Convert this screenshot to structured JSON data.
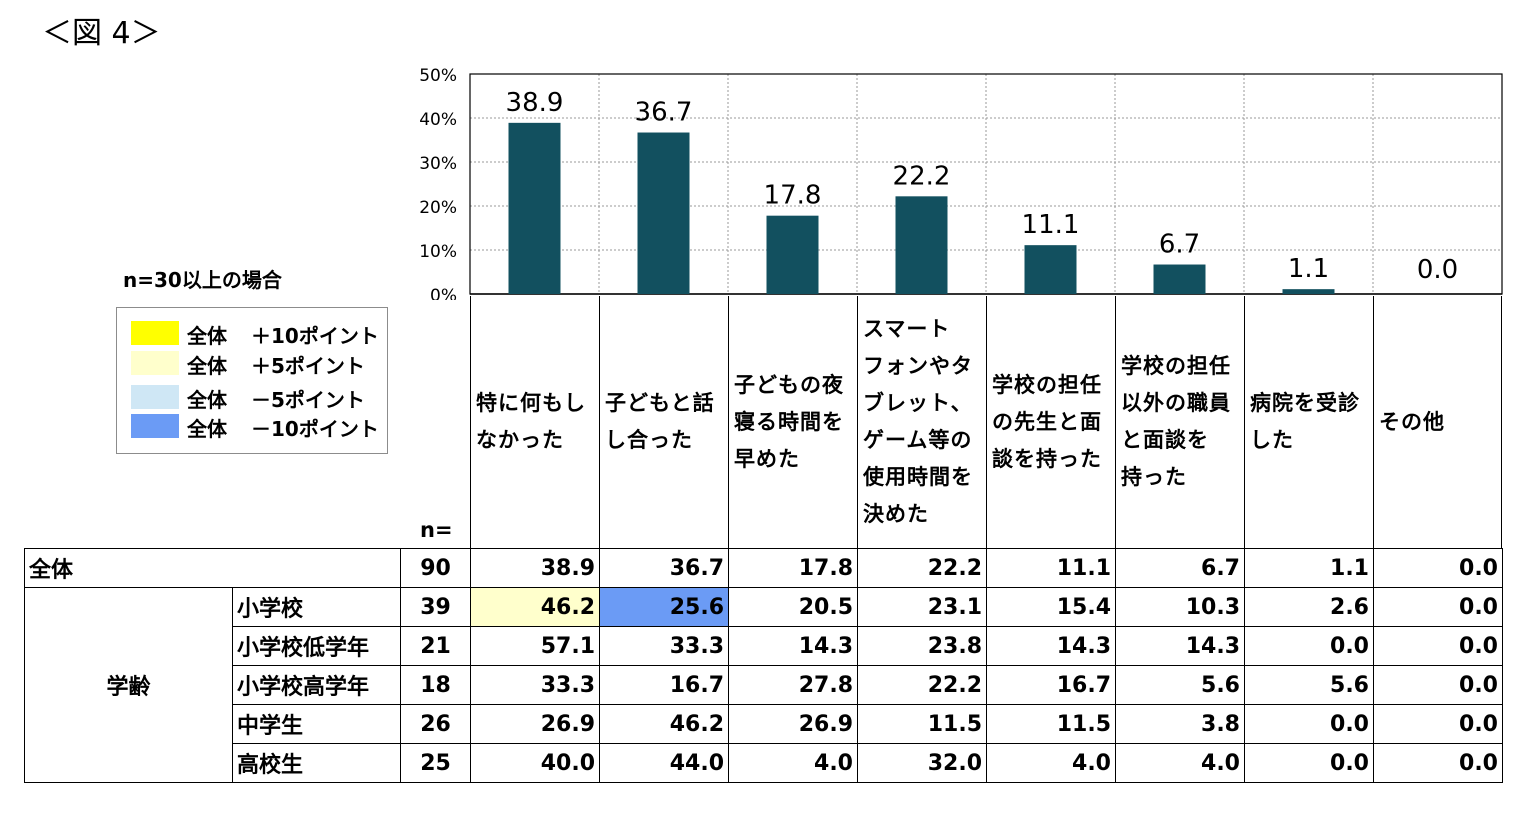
{
  "figure_title": "＜図 4＞",
  "n_note": "n=30以上の場合",
  "legend": [
    {
      "label": "全体",
      "diff": "＋10ポイント",
      "color": "#ffff00"
    },
    {
      "label": "全体",
      "diff": "＋5ポイント",
      "color": "#ffffcc"
    },
    {
      "label": "全体",
      "diff": "－5ポイント",
      "color": "#cfe7f5"
    },
    {
      "label": "全体",
      "diff": "－10ポイント",
      "color": "#6b9bf5"
    }
  ],
  "n_label": "n=",
  "bar_color": "#12505f",
  "chart_data": {
    "type": "bar",
    "categories": [
      "特に何もしなかった",
      "子どもと話し合った",
      "子どもの夜寝る時間を早めた",
      "スマートフォンやタブレット、ゲーム等の使用時間を決めた",
      "学校の担任の先生と面談を持った",
      "学校の担任以外の職員と面談を持った",
      "病院を受診した",
      "その他"
    ],
    "values": [
      38.9,
      36.7,
      17.8,
      22.2,
      11.1,
      6.7,
      1.1,
      0.0
    ],
    "value_labels": [
      "38.9",
      "36.7",
      "17.8",
      "22.2",
      "11.1",
      "6.7",
      "1.1",
      "0.0"
    ],
    "y_ticks": [
      "0%",
      "10%",
      "20%",
      "30%",
      "40%",
      "50%"
    ],
    "ylim": [
      0,
      50
    ],
    "grid": true,
    "title": "",
    "xlabel": "",
    "ylabel": ""
  },
  "headers": [
    "特に何もし\nなかった",
    "子どもと話\nし合った",
    "子どもの夜\n寝る時間を\n早めた",
    "スマート\nフォンやタ\nブレット、\nゲーム等の\n使用時間を\n決めた",
    "学校の担任\nの先生と面\n談を持った",
    "学校の担任\n以外の職員\nと面談を\n持った",
    "病院を受診\nした",
    "その他"
  ],
  "table": {
    "total": {
      "label": "全体",
      "n": "90",
      "values": [
        "38.9",
        "36.7",
        "17.8",
        "22.2",
        "11.1",
        "6.7",
        "1.1",
        "0.0"
      ]
    },
    "group_label": "学齢",
    "rows": [
      {
        "label": "小学校",
        "n": "39",
        "values": [
          "46.2",
          "25.6",
          "20.5",
          "23.1",
          "15.4",
          "10.3",
          "2.6",
          "0.0"
        ],
        "highlights": [
          "#ffffcc",
          "#6b9bf5",
          "",
          "",
          "",
          "",
          "",
          ""
        ]
      },
      {
        "label": "小学校低学年",
        "n": "21",
        "values": [
          "57.1",
          "33.3",
          "14.3",
          "23.8",
          "14.3",
          "14.3",
          "0.0",
          "0.0"
        ],
        "highlights": [
          "",
          "",
          "",
          "",
          "",
          "",
          "",
          ""
        ]
      },
      {
        "label": "小学校高学年",
        "n": "18",
        "values": [
          "33.3",
          "16.7",
          "27.8",
          "22.2",
          "16.7",
          "5.6",
          "5.6",
          "0.0"
        ],
        "highlights": [
          "",
          "",
          "",
          "",
          "",
          "",
          "",
          ""
        ]
      },
      {
        "label": "中学生",
        "n": "26",
        "values": [
          "26.9",
          "46.2",
          "26.9",
          "11.5",
          "11.5",
          "3.8",
          "0.0",
          "0.0"
        ],
        "highlights": [
          "",
          "",
          "",
          "",
          "",
          "",
          "",
          ""
        ]
      },
      {
        "label": "高校生",
        "n": "25",
        "values": [
          "40.0",
          "44.0",
          "4.0",
          "32.0",
          "4.0",
          "4.0",
          "0.0",
          "0.0"
        ],
        "highlights": [
          "",
          "",
          "",
          "",
          "",
          "",
          "",
          ""
        ]
      }
    ]
  }
}
